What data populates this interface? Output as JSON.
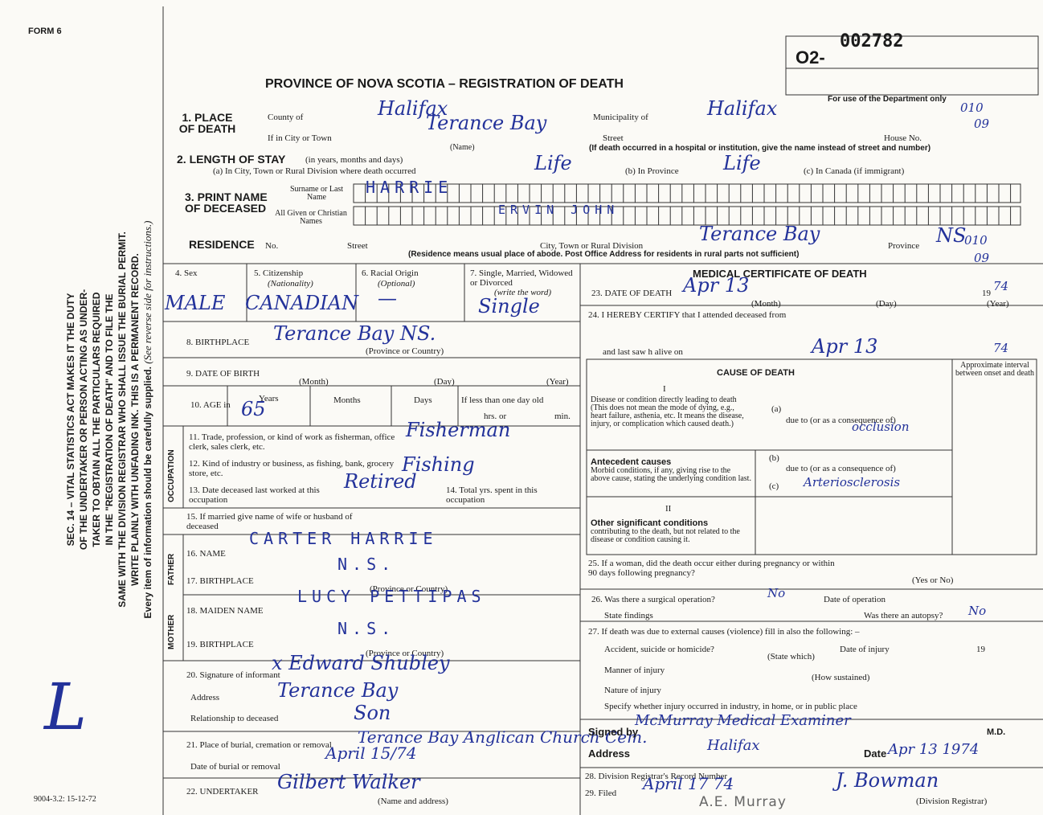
{
  "form_label": "FORM 6",
  "side_text": [
    "SEC. 14 – VITAL STATISTICS ACT MAKES IT THE DUTY",
    "OF THE UNDERTAKER OR PERSON ACTING AS UNDER-",
    "TAKER TO OBTAIN ALL THE PARTICULARS REQUIRED",
    "IN THE \"REGISTRATION OF DEATH\" AND TO FILE THE",
    "SAME WITH THE DIVISION REGISTRAR WHO SHALL ISSUE THE BURIAL PERMIT.",
    "WRITE PLAINLY WITH UNFADING INK. THIS IS A PERMANENT RECORD."
  ],
  "side_note": "Every item of information should be carefully supplied.",
  "side_note_italic": "(See reverse side for instructions.)",
  "margin_mark": "L",
  "form_code": "9004-3.2: 15-12-72",
  "record": {
    "prefix": "O2-",
    "number": "002782"
  },
  "title": "PROVINCE OF NOVA SCOTIA – REGISTRATION OF DEATH",
  "dept_use": "For use of the Department only",
  "dept_codes": [
    "010",
    "09",
    "010",
    "09"
  ],
  "place_of_death": {
    "label": "1. PLACE OF DEATH",
    "county_label": "County of",
    "county": "Halifax",
    "municipality_label": "Municipality of",
    "municipality": "Halifax",
    "city_label": "If in City or Town",
    "city": "Terance Bay",
    "name_caption": "(Name)",
    "street_label": "Street",
    "house_label": "House No.",
    "hospital_note": "(If death occurred in a hospital or institution, give the name instead of street and number)"
  },
  "length_of_stay": {
    "label": "2. LENGTH OF STAY",
    "unit_note": "(in years, months and days)",
    "a_label": "(a) In City, Town or Rural Division where death occurred",
    "a": "Life",
    "b_label": "(b) In Province",
    "b": "Life",
    "c_label": "(c) In Canada (if immigrant)"
  },
  "name": {
    "label": "3. PRINT NAME OF DECEASED",
    "surname_label": "Surname or Last Name",
    "surname": "HARRIE",
    "given_label": "All Given or Christian Names",
    "given": "ERVIN JOHN"
  },
  "residence": {
    "label": "RESIDENCE",
    "no_label": "No.",
    "street_label": "Street",
    "city_label": "City, Town or Rural Division",
    "city": "Terance Bay",
    "province_label": "Province",
    "province": "NS",
    "note": "(Residence means usual place of abode. Post Office Address for residents in rural parts not sufficient)"
  },
  "personal": {
    "sex_label": "4. Sex",
    "sex": "MALE",
    "citizenship_label": "5. Citizenship",
    "citizenship_sub": "(Nationality)",
    "citizenship": "CANADIAN",
    "racial_label": "6. Racial Origin",
    "racial_sub": "(Optional)",
    "racial": "—",
    "marital_label": "7. Single, Married, Widowed or Divorced",
    "marital_sub": "(write the word)",
    "marital": "Single",
    "birthplace_label": "8. BIRTHPLACE",
    "birthplace": "Terance Bay NS.",
    "birthplace_caption": "(Province or Country)",
    "dob_label": "9. DATE OF BIRTH",
    "dob_month": "(Month)",
    "dob_day": "(Day)",
    "dob_year": "(Year)",
    "age_label": "10. AGE in",
    "years_label": "Years",
    "age_years": "65",
    "months_label": "Months",
    "days_label": "Days",
    "less_label": "If less than one day old",
    "hrs_label": "hrs. or",
    "min_label": "min."
  },
  "occupation": {
    "section": "OCCUPATION",
    "trade_label": "11. Trade, profession, or kind of work as fisherman, office clerk, sales clerk, etc.",
    "trade": "Fisherman",
    "industry_label": "12. Kind of industry or business, as fishing, bank, grocery store, etc.",
    "industry": "Fishing",
    "last_worked_label": "13. Date deceased last worked at this occupation",
    "last_worked": "Retired",
    "total_label": "14. Total yrs. spent in this occupation"
  },
  "spouse": {
    "label": "15. If married give name of wife or husband of deceased"
  },
  "father": {
    "section": "FATHER",
    "name_label": "16. NAME",
    "name": "CARTER HARRIE",
    "birthplace_label": "17. BIRTHPLACE",
    "birthplace": "N.S.",
    "caption": "(Province or Country)"
  },
  "mother": {
    "section": "MOTHER",
    "maiden_label": "18. MAIDEN NAME",
    "maiden": "LUCY PETTIPAS",
    "birthplace_label": "19. BIRTHPLACE",
    "birthplace": "N.S.",
    "caption": "(Province or Country)"
  },
  "informant": {
    "label": "20. Signature of informant",
    "signature": "x Edward Shubley",
    "address_label": "Address",
    "address": "Terance Bay",
    "relationship_label": "Relationship to deceased",
    "relationship": "Son"
  },
  "burial": {
    "place_label": "21. Place of burial, cremation or removal",
    "place": "Terance Bay Anglican Church Cem.",
    "date_label": "Date of burial or removal",
    "date": "April 15/74"
  },
  "undertaker": {
    "label": "22. UNDERTAKER",
    "name": "Gilbert Walker",
    "caption": "(Name and address)"
  },
  "medical": {
    "heading": "MEDICAL CERTIFICATE OF DEATH",
    "dod_label": "23. DATE OF DEATH",
    "dod": "Apr 13",
    "year_printed": "19",
    "dod_year": "74",
    "month": "(Month)",
    "day": "(Day)",
    "year": "(Year)",
    "certify_label": "24. I HEREBY CERTIFY that I attended deceased from",
    "last_saw_label": "and last saw h      alive on",
    "last_saw": "Apr 13",
    "last_saw_year": "74"
  },
  "cause": {
    "heading": "CAUSE OF DEATH",
    "interval": "Approximate interval between onset and death",
    "part1": "I",
    "disease_label": "Disease or condition directly leading to death (This does not mean the mode of dying, e.g., heart failure, asthenia, etc. It means the disease, injury, or complication which caused death.)",
    "a": "(a)",
    "due1": "due to (or as a consequence of)",
    "due1_value": "occlusion",
    "antecedent_label": "Antecedent causes",
    "antecedent_note": "Morbid conditions, if any, giving rise to the above cause, stating the underlying condition last.",
    "b": "(b)",
    "due2": "due to (or as a consequence of)",
    "c": "(c)",
    "c_value": "Arteriosclerosis",
    "part2": "II",
    "other_label": "Other significant conditions",
    "other_note": "contributing to the death, but not related to the disease or condition causing it."
  },
  "pregnancy": {
    "label": "25. If a woman, did the death occur either during pregnancy or within 90 days following pregnancy?",
    "yes_no": "(Yes or No)"
  },
  "surgery": {
    "label": "26. Was there a surgical operation?",
    "value": "No",
    "date_label": "Date of operation",
    "findings_label": "State findings",
    "autopsy_label": "Was there an autopsy?",
    "autopsy": "No"
  },
  "external": {
    "label": "27. If death was due to external causes (violence) fill in also the following: –",
    "accident_label": "Accident, suicide or homicide?",
    "state_which": "(State which)",
    "injury_date_label": "Date of injury",
    "manner_label": "Manner of injury",
    "how": "(How sustained)",
    "nature_label": "Nature of injury",
    "specify_label": "Specify whether injury occurred in industry, in home, or in public place"
  },
  "signature": {
    "signed_label": "Signed by",
    "signed": "McMurray Medical Examiner",
    "md": "M.D.",
    "address_label": "Address",
    "address": "Halifax",
    "date_label": "Date",
    "date": "Apr 13 1974"
  },
  "registrar": {
    "record_label": "28. Division Registrar's Record Number",
    "filed_label": "29. Filed",
    "filed": "April 17 74",
    "name": "J. Bowman",
    "caption": "(Division Registrar)",
    "stamp": "A.E. Murray"
  }
}
